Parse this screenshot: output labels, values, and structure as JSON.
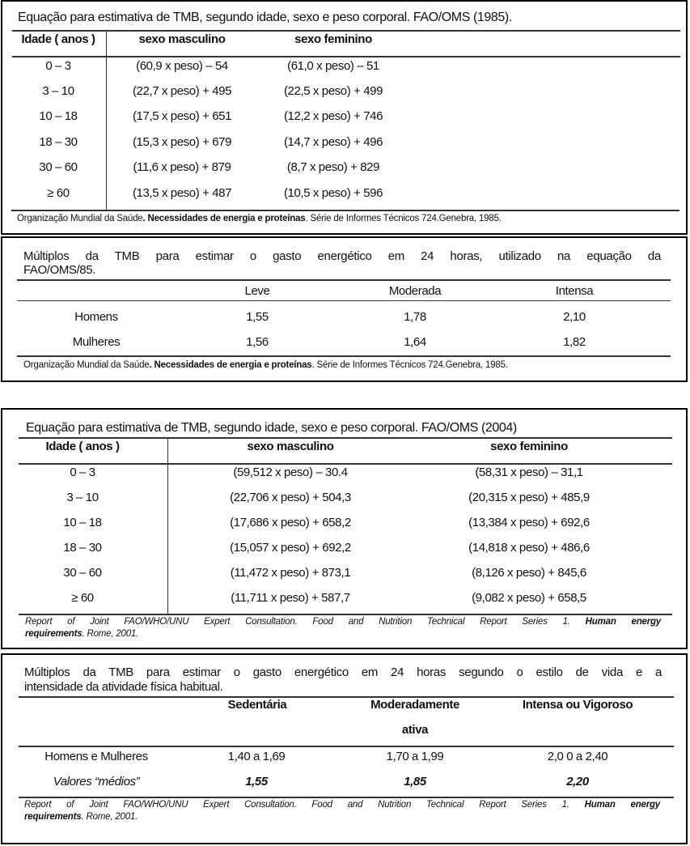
{
  "t1": {
    "title": "Equação para estimativa de TMB, segundo idade, sexo e peso corporal. FAO/OMS (1985).",
    "headers": [
      "Idade ( anos )",
      "sexo masculino",
      "sexo feminino"
    ],
    "rows": [
      [
        "0 – 3",
        "(60,9 x peso) – 54",
        "(61,0 x peso) – 51"
      ],
      [
        "3 – 10",
        "(22,7 x peso) + 495",
        "(22,5 x peso) + 499"
      ],
      [
        "10 – 18",
        "(17,5 x peso) + 651",
        "(12,2 x peso) + 746"
      ],
      [
        "18 – 30",
        "(15,3 x peso) + 679",
        "(14,7 x peso) + 496"
      ],
      [
        "30 – 60",
        "(11,6 x peso) + 879",
        "(8,7 x peso) + 829"
      ],
      [
        "≥ 60",
        "(13,5 x peso) + 487",
        "(10,5 x peso) + 596"
      ]
    ],
    "foot": {
      "a": "Organização Mundial da Saúde",
      "b": ". Necessidades de energia e proteínas",
      "c": ". Série de Informes Técnicos 724.Genebra, 1985."
    }
  },
  "t2": {
    "title1": "Múltiplos da TMB para estimar o gasto energético em 24 horas, utilizado na equação da",
    "title2": "FAO/OMS/85.",
    "headers": [
      "Leve",
      "Moderada",
      "Intensa"
    ],
    "rows": [
      [
        "Homens",
        "1,55",
        "1,78",
        "2,10"
      ],
      [
        "Mulheres",
        "1,56",
        "1,64",
        "1,82"
      ]
    ],
    "foot": {
      "a": "Organização Mundial da Saúde",
      "b": ". Necessidades de energia e proteínas",
      "c": ". Série de Informes Técnicos 724.Genebra, 1985."
    }
  },
  "t3": {
    "title": "Equação para estimativa de TMB, segundo idade, sexo e peso corporal. FAO/OMS (2004)",
    "headers": [
      "Idade ( anos )",
      "sexo masculino",
      "sexo feminino"
    ],
    "rows": [
      [
        "0 – 3",
        "(59,512 x peso) – 30.4",
        "(58,31 x peso) – 31,1"
      ],
      [
        "3 – 10",
        "(22,706 x peso) + 504,3",
        "(20,315 x peso) + 485,9"
      ],
      [
        "10 – 18",
        "(17,686 x peso) + 658,2",
        "(13,384 x peso) + 692,6"
      ],
      [
        "18 – 30",
        "(15,057 x peso) + 692,2",
        "(14,818 x peso) + 486,6"
      ],
      [
        "30 – 60",
        "(11,472 x peso) + 873,1",
        "(8,126 x peso) + 845,6"
      ],
      [
        "≥ 60",
        "(11,711 x peso) + 587,7",
        "(9,082 x peso) + 658,5"
      ]
    ],
    "foot1": "Report of Joint FAO/WHO/UNU Expert Consultation. Food and Nutrition Technical Report Series 1.",
    "foot1b": "Human energy",
    "foot2a": "requirements",
    "foot2b": ". Rome, 2001."
  },
  "t4": {
    "title1": "Múltiplos da TMB para estimar o gasto energético em 24 horas segundo o estilo de vida e a",
    "title2": "intensidade da atividade física habitual.",
    "headers": [
      "Sedentária",
      "Moderadamente",
      "ativa",
      "Intensa ou Vigoroso"
    ],
    "rows": [
      [
        "Homens e Mulheres",
        "1,40 a 1,69",
        "1,70 a 1,99",
        "2,0 0 a 2,40"
      ],
      [
        "Valores “médios”",
        "1,55",
        "1,85",
        "2,20"
      ]
    ],
    "foot1": "Report of Joint FAO/WHO/UNU Expert Consultation. Food and Nutrition Technical Report Series 1.",
    "foot1b": "Human energy",
    "foot2a": "requirements",
    "foot2b": ". Rome, 2001."
  }
}
